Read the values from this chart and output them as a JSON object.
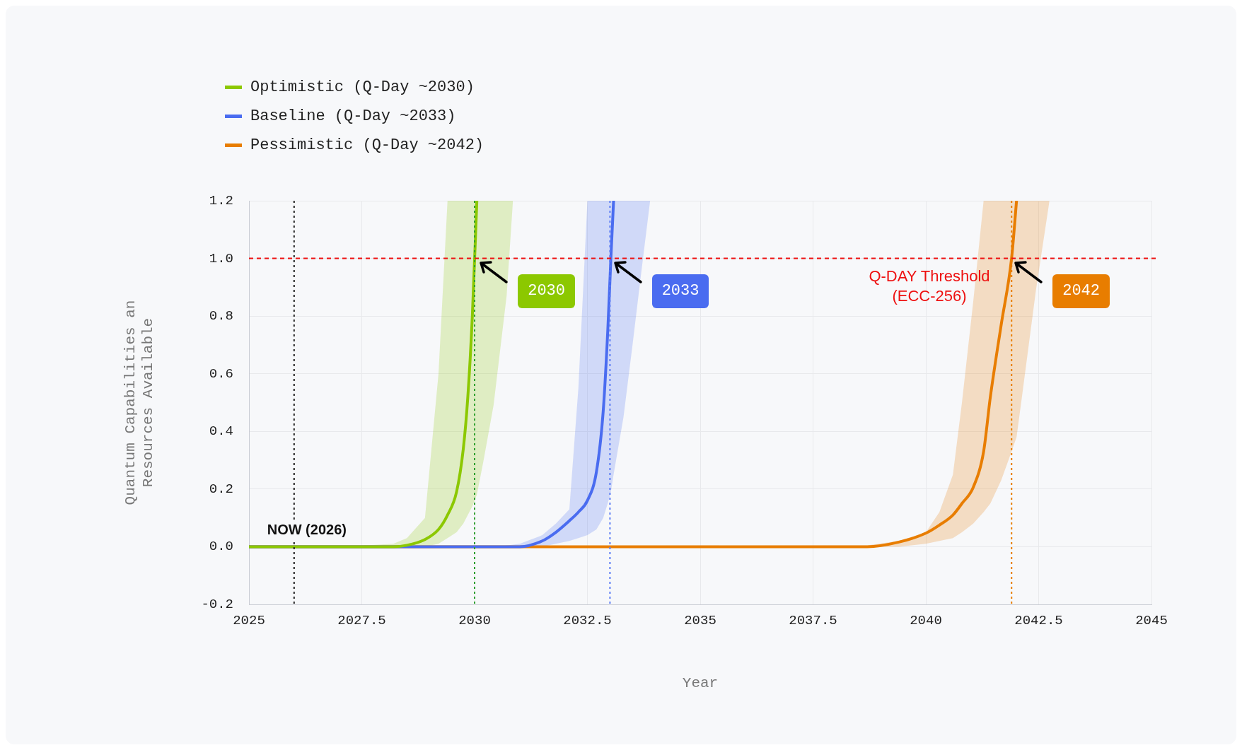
{
  "chart_data": {
    "type": "line",
    "xlabel": "Year",
    "ylabel": "Quantum Capabilities an\nResources Available",
    "xlim": [
      2025,
      2045
    ],
    "xticks": [
      2025,
      {
        "value": 2027.5,
        "label": "2027.5"
      },
      2030,
      {
        "value": 2032.5,
        "label": "2032.5"
      },
      2035,
      {
        "value": 2037.5,
        "label": "2037.5"
      },
      2040,
      {
        "value": 2042.5,
        "label": "2042.5"
      },
      2045
    ],
    "ylim": [
      -0.2,
      1.2
    ],
    "yticks": [
      {
        "value": -0.2,
        "label": "-0.2"
      },
      {
        "value": 0,
        "label": "0.0"
      },
      {
        "value": 0.2,
        "label": "0.2"
      },
      {
        "value": 0.4,
        "label": "0.4"
      },
      {
        "value": 0.6,
        "label": "0.6"
      },
      {
        "value": 0.8,
        "label": "0.8"
      },
      {
        "value": 1,
        "label": "1.0"
      },
      {
        "value": 1.2,
        "label": "1.2"
      }
    ],
    "grid": true,
    "legend": "top left",
    "marker": "none",
    "series": [
      {
        "name": "Optimistic (Q-Day ~2030)",
        "color": "#8cc800",
        "x": [
          2025,
          2027,
          2028.2,
          2028.5,
          2028.9,
          2029.2,
          2029.4,
          2029.6,
          2029.75,
          2029.85,
          2029.95,
          2030.05,
          2030.2,
          2030.42,
          2030.71,
          2030.85
        ],
        "values": [
          0,
          0,
          0,
          0.005,
          0.025,
          0.06,
          0.11,
          0.19,
          0.34,
          0.52,
          0.8,
          1.2,
          null,
          null,
          null,
          null
        ],
        "lower": [
          0,
          0,
          0,
          0,
          0,
          0.01,
          0.03,
          0.05,
          0.08,
          0.11,
          0.14,
          0.18,
          0.3,
          0.49,
          0.87,
          1.2
        ],
        "upper": [
          0,
          0,
          0.01,
          0.03,
          0.1,
          0.6,
          1.2,
          1.2,
          1.2,
          1.2,
          1.2,
          1.2,
          1.2,
          1.2,
          1.2,
          1.2
        ]
      },
      {
        "name": "Baseline (Q-Day ~2033)",
        "color": "#4a6cf0",
        "x": [
          2025,
          2030.5,
          2031,
          2031.5,
          2031.8,
          2032.1,
          2032.3,
          2032.5,
          2032.7,
          2032.85,
          2032.95,
          2033.02,
          2033.08,
          2033.3,
          2033.5,
          2033.7,
          2033.89
        ],
        "values": [
          0,
          0,
          0,
          0.02,
          0.05,
          0.09,
          0.12,
          0.16,
          0.26,
          0.47,
          0.745,
          1,
          1.2,
          null,
          null,
          null,
          null
        ],
        "lower": [
          0,
          0,
          0,
          0,
          0.01,
          0.02,
          0.03,
          0.04,
          0.06,
          0.1,
          0.15,
          0.19,
          0.25,
          0.45,
          0.7,
          0.96,
          1.2
        ],
        "upper": [
          0,
          0,
          0.01,
          0.04,
          0.08,
          0.13,
          0.55,
          1.2,
          1.2,
          1.2,
          1.2,
          1.2,
          1.2,
          1.2,
          1.2,
          1.2,
          1.2
        ]
      },
      {
        "name": "Pessimistic (Q-Day ~2042)",
        "color": "#e87d00",
        "x": [
          2025,
          2038.7,
          2039.4,
          2040,
          2040.3,
          2040.6,
          2040.8,
          2041.05,
          2041.28,
          2041.43,
          2041.67,
          2041.9,
          2042.01,
          2042.13,
          2042.44,
          2042.74
        ],
        "values": [
          0,
          0,
          0.016,
          0.047,
          0.075,
          0.11,
          0.15,
          0.206,
          0.33,
          0.52,
          0.77,
          1,
          1.2,
          null,
          null,
          null
        ],
        "lower": [
          0,
          0,
          0,
          0.01,
          0.02,
          0.03,
          0.05,
          0.08,
          0.12,
          0.15,
          0.23,
          0.33,
          0.38,
          0.52,
          0.89,
          1.2
        ],
        "upper": [
          0,
          0.005,
          0.02,
          0.05,
          0.12,
          0.25,
          0.5,
          0.85,
          1.2,
          1.2,
          1.2,
          1.2,
          1.2,
          1.2,
          1.2,
          1.2
        ]
      }
    ],
    "ref_lines": [
      {
        "axis": "x",
        "value": 2026,
        "label": "NOW (2026)",
        "color": "#222222",
        "line_style": "dotted"
      },
      {
        "axis": "x",
        "value": 2030,
        "color": "#2ea02e",
        "line_style": "dotted"
      },
      {
        "axis": "x",
        "value": 2033,
        "color": "#5b7cf5",
        "line_style": "dotted"
      },
      {
        "axis": "x",
        "value": 2041.9,
        "color": "#e87d00",
        "line_style": "dotted"
      },
      {
        "axis": "y",
        "value": 1,
        "label": "Q-DAY Threshold\n(ECC-256)",
        "color": "#ee1111",
        "line_style": "dashed"
      }
    ],
    "annotations": [
      "2030",
      "2033",
      "2042"
    ]
  }
}
